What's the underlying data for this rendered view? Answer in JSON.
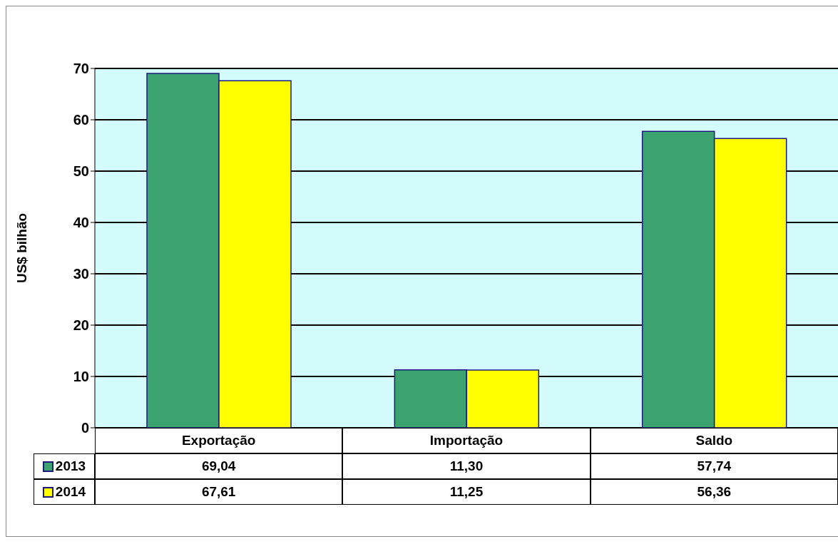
{
  "chart_data": {
    "type": "bar",
    "ylabel": "US$ bilhão",
    "categories": [
      "Exportação",
      "Importação",
      "Saldo"
    ],
    "series": [
      {
        "name": "2013",
        "color": "#3ca370",
        "values": [
          69.04,
          11.3,
          57.74
        ],
        "value_labels": [
          "69,04",
          "11,30",
          "57,74"
        ]
      },
      {
        "name": "2014",
        "color": "#ffff00",
        "values": [
          67.61,
          11.25,
          56.36
        ],
        "value_labels": [
          "67,61",
          "11,25",
          "56,36"
        ]
      }
    ],
    "ylim": [
      0,
      70
    ],
    "yticks": [
      0,
      10,
      20,
      30,
      40,
      50,
      60,
      70
    ],
    "grid": "y",
    "legend": "bottom left"
  }
}
